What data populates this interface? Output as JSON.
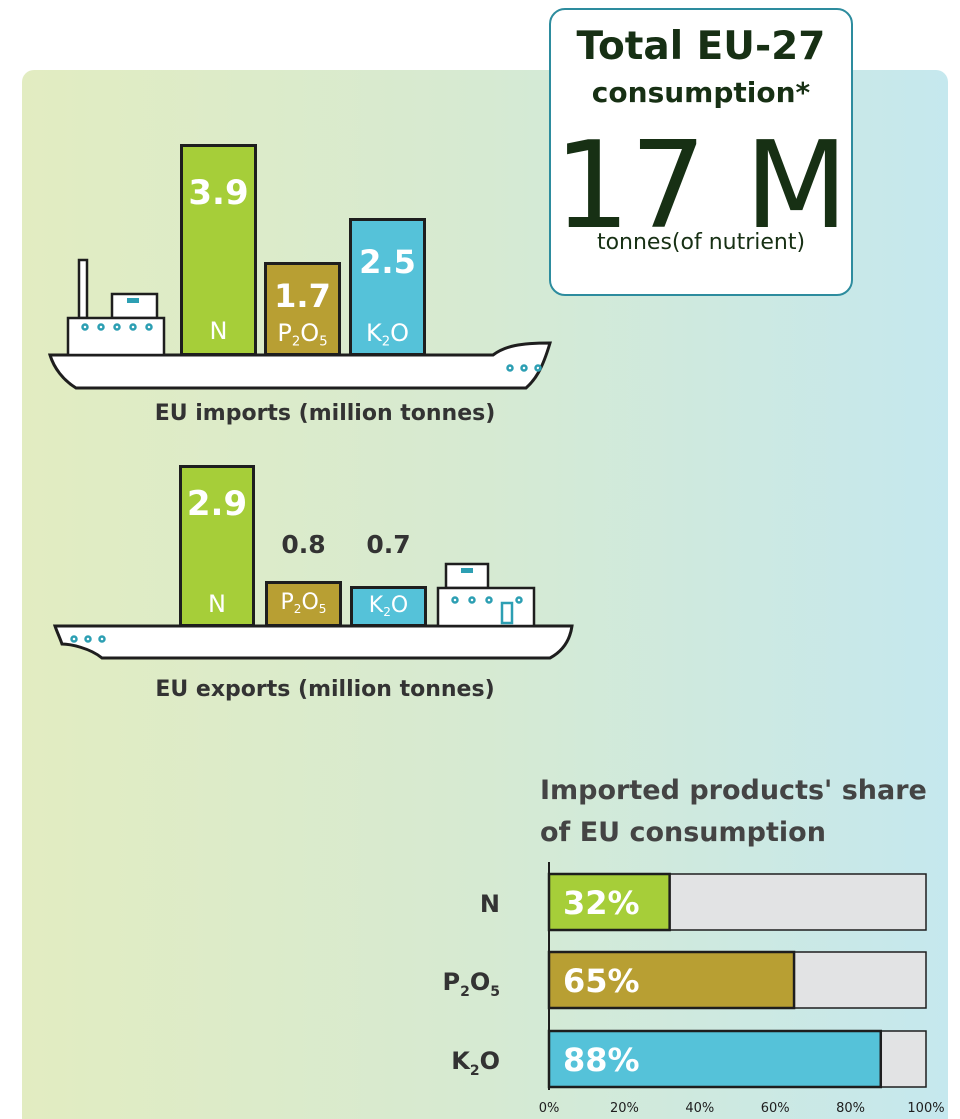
{
  "imports": {
    "caption": "EU imports (million tonnes)",
    "items": [
      {
        "value": "3.9",
        "name": "N",
        "sub": ""
      },
      {
        "value": "1.7",
        "name": "P",
        "sub": "2",
        "tail": "O",
        "sub2": "5"
      },
      {
        "value": "2.5",
        "name": "K",
        "sub": "2",
        "tail": "O",
        "sub2": ""
      }
    ]
  },
  "exports": {
    "caption": "EU exports (million tonnes)",
    "items": [
      {
        "value": "2.9",
        "name": "N"
      },
      {
        "value": "0.8",
        "name": "P",
        "sub": "2",
        "tail": "O",
        "sub2": "5"
      },
      {
        "value": "0.7",
        "name": "K",
        "sub": "2",
        "tail": "O",
        "sub2": ""
      }
    ]
  },
  "total": {
    "line1": "Total EU-27",
    "line2": "consumption*",
    "value": "17 M",
    "unit": "tonnes(of nutrient)"
  },
  "share_title": "Imported products' share of EU consumption",
  "chart_data": {
    "type": "bar",
    "orientation": "horizontal",
    "title": "Imported products' share of EU consumption",
    "categories": [
      "N",
      "P2O5",
      "K2O"
    ],
    "values": [
      32,
      65,
      88
    ],
    "value_labels": [
      "32%",
      "65%",
      "88%"
    ],
    "xlim": [
      0,
      100
    ],
    "xticks": [
      "0%",
      "20%",
      "40%",
      "60%",
      "80%",
      "100%"
    ],
    "colors": [
      "#a6ce39",
      "#b89f33",
      "#55c2d9"
    ],
    "background_color": "#e2e3e4"
  },
  "colors": {
    "N": "#a6ce39",
    "P2O5": "#b89f33",
    "K2O": "#55c2d9",
    "teal": "#2d9fb3"
  }
}
